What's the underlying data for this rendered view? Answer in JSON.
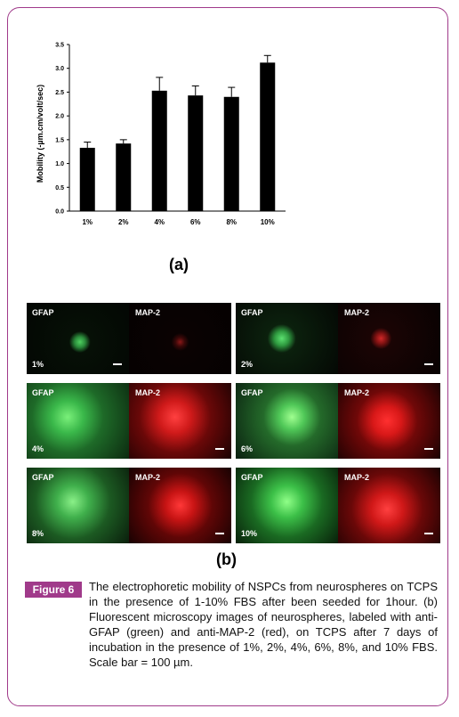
{
  "chart_data": {
    "type": "bar",
    "categories": [
      "1%",
      "2%",
      "4%",
      "6%",
      "8%",
      "10%"
    ],
    "values": [
      1.33,
      1.42,
      2.53,
      2.43,
      2.4,
      3.12
    ],
    "errors": [
      0.12,
      0.08,
      0.28,
      0.2,
      0.2,
      0.15
    ],
    "ylabel": "Mobility (-µm.cm/volt/sec)",
    "xlabel": "",
    "ylim": [
      0,
      3.5
    ],
    "yticks": [
      "0.0",
      "0.5",
      "1.0",
      "1.5",
      "2.0",
      "2.5",
      "3.0",
      "3.5"
    ],
    "bar_color": "#000000"
  },
  "panel_a_label": "(a)",
  "panel_b_label": "(b)",
  "micrographs": [
    {
      "left_label": "GFAP",
      "right_label": "MAP-2",
      "pct": "1%"
    },
    {
      "left_label": "GFAP",
      "right_label": "MAP-2",
      "pct": "2%"
    },
    {
      "left_label": "GFAP",
      "right_label": "MAP-2",
      "pct": "4%"
    },
    {
      "left_label": "GFAP",
      "right_label": "MAP-2",
      "pct": "6%"
    },
    {
      "left_label": "GFAP",
      "right_label": "MAP-2",
      "pct": "8%"
    },
    {
      "left_label": "GFAP",
      "right_label": "MAP-2",
      "pct": "10%"
    }
  ],
  "figure_label": "Figure 6",
  "caption": "The electrophoretic mobility of NSPCs from neurospheres on TCPS in the presence of 1-10% FBS after been seeded for 1hour. (b) Fluorescent microscopy images of neurospheres, labeled with anti-GFAP (green) and anti-MAP-2 (red), on TCPS after 7 days of incubation in the presence of 1%, 2%, 4%, 6%, 8%, and 10% FBS. Scale bar = 100 µm.",
  "colors": {
    "frame": "#a03a8a",
    "badge": "#a03a8a"
  }
}
